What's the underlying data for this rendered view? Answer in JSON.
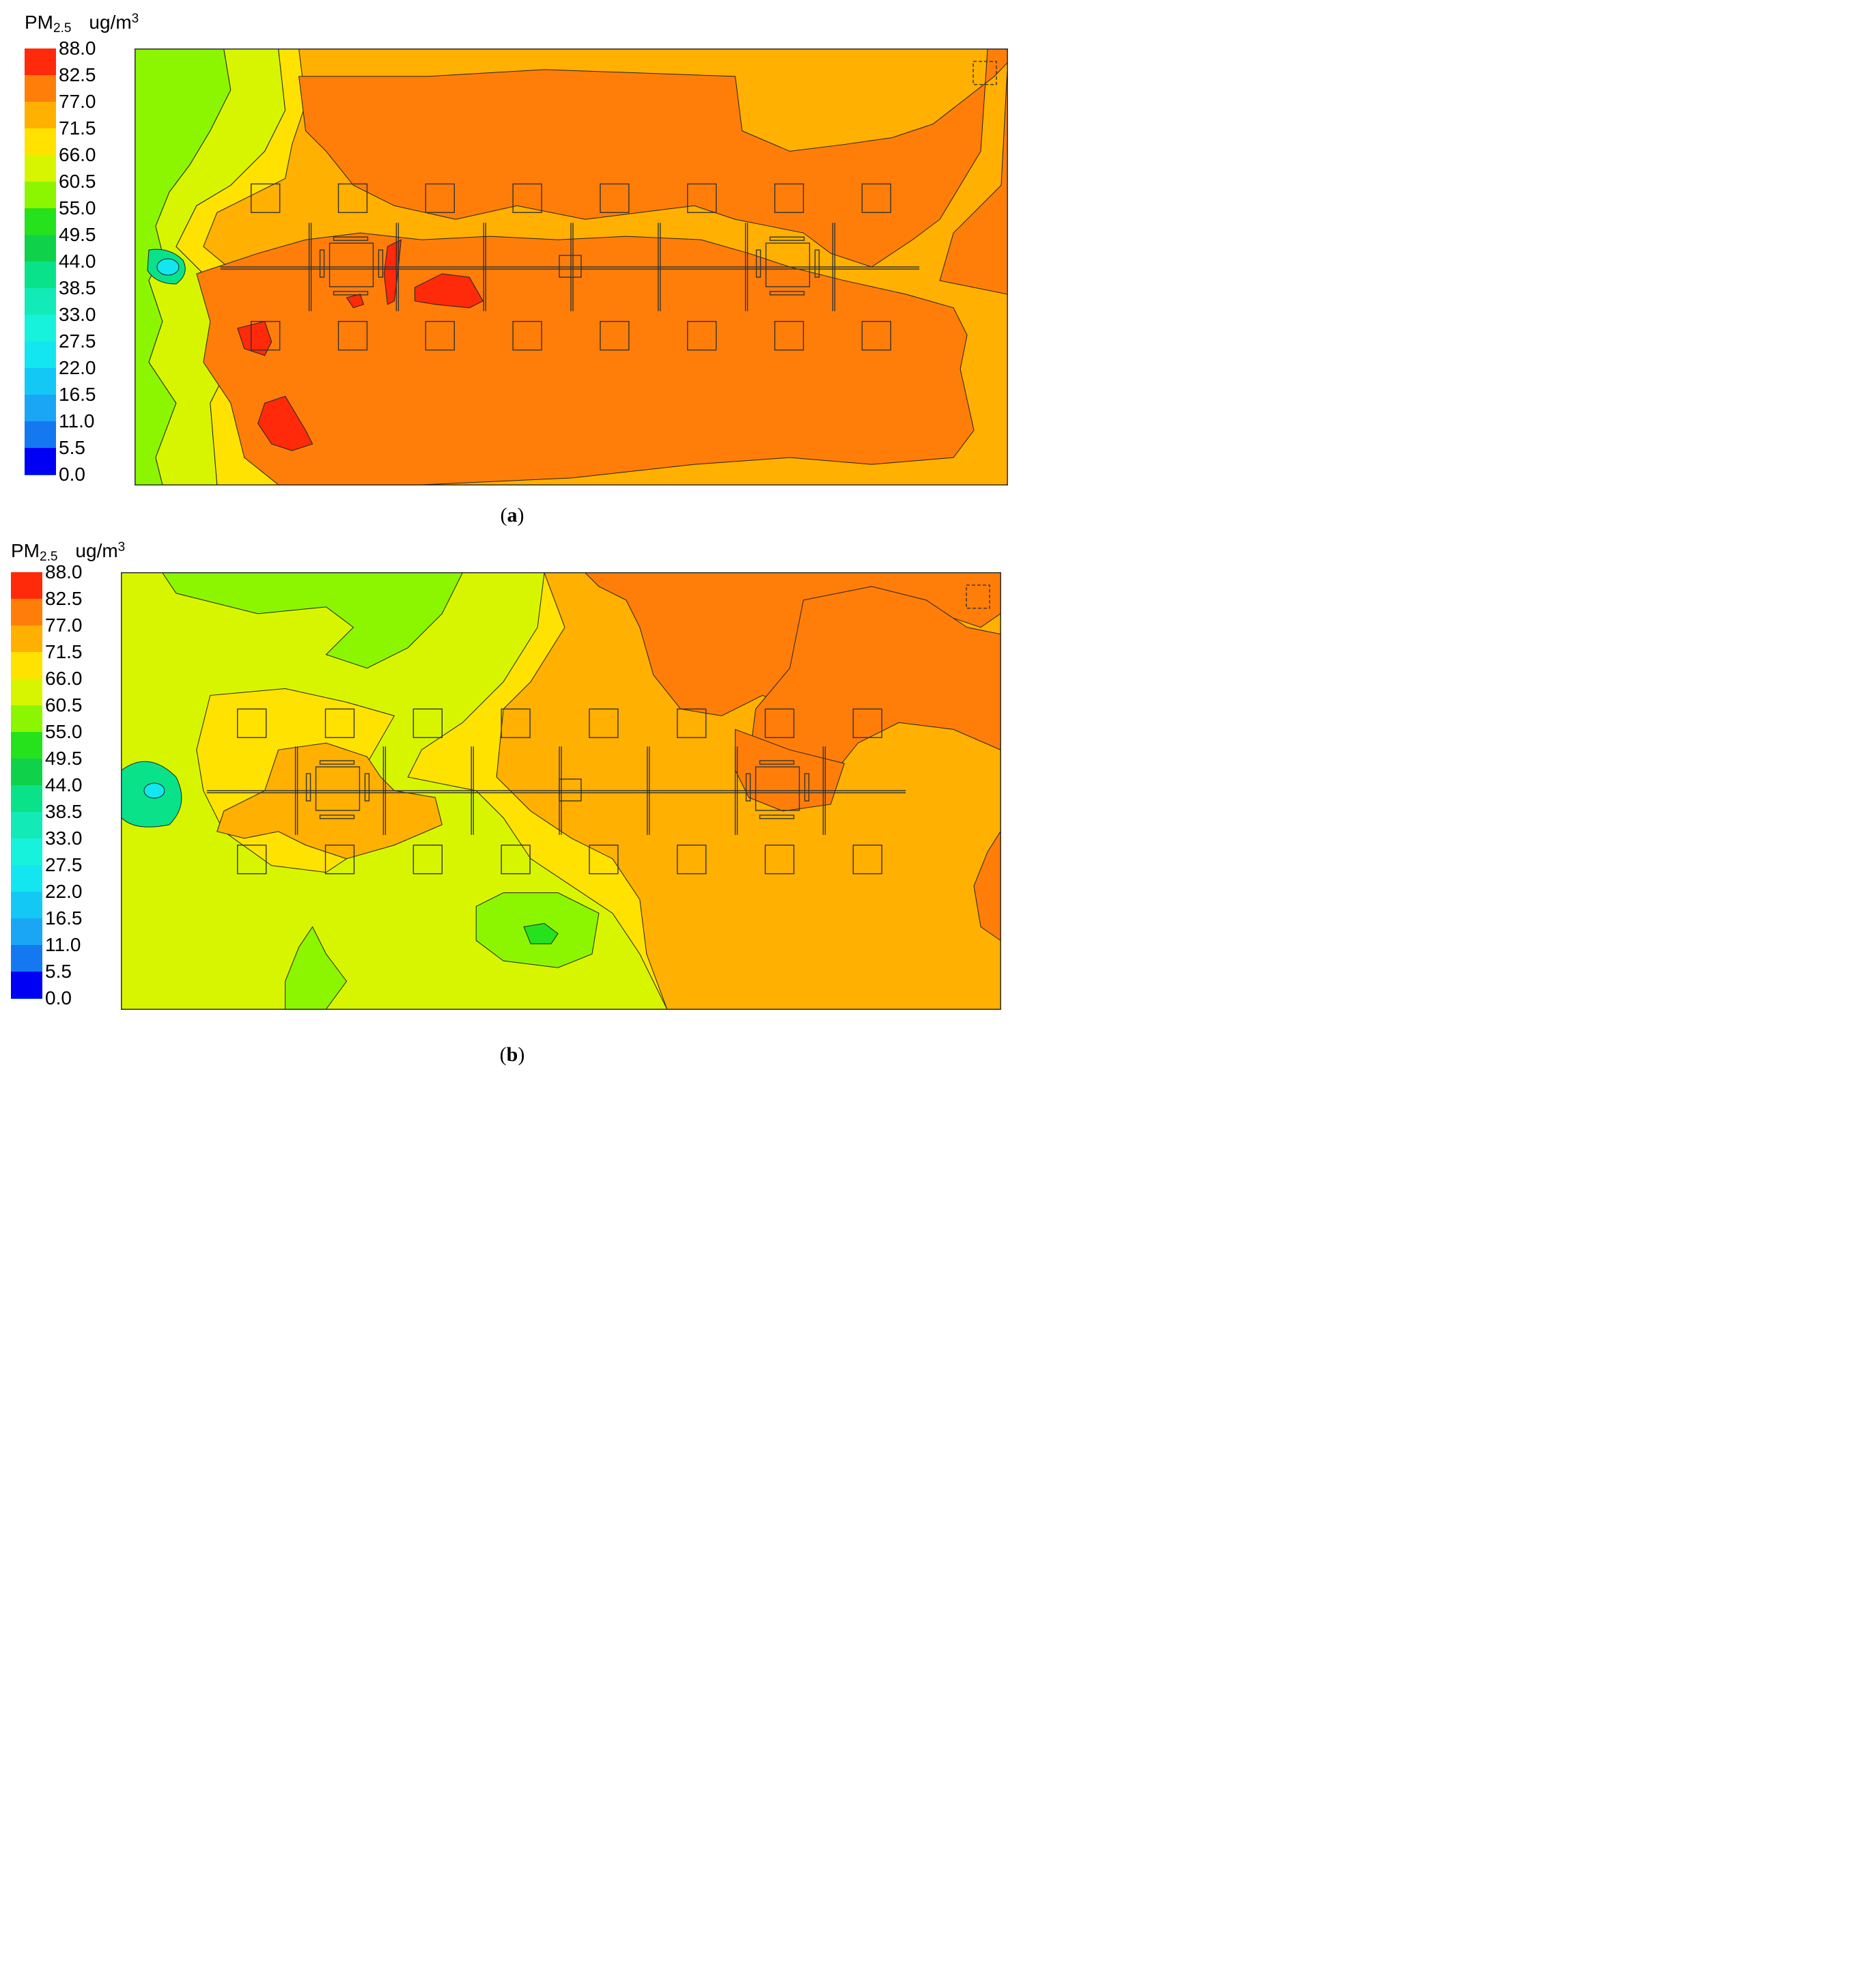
{
  "chart_data": [
    {
      "type": "heatmap",
      "panel_label": "a",
      "quantity": "PM",
      "quantity_subscript": "2.5",
      "unit": "ug/m",
      "unit_superscript": "3",
      "colorbar_ticks": [
        "88.0",
        "82.5",
        "77.0",
        "71.5",
        "66.0",
        "60.5",
        "55.0",
        "49.5",
        "44.0",
        "38.5",
        "33.0",
        "27.5",
        "22.0",
        "16.5",
        "11.0",
        "5.5",
        "0.0"
      ],
      "value_range": [
        0,
        88
      ],
      "dominant_level": 82.5,
      "regions": [
        {
          "level": 82.5,
          "description": "central and upper core"
        },
        {
          "level": 88.0,
          "description": "small hot spots near centre-left and lower-left"
        },
        {
          "level": 77.0,
          "description": "surrounding band"
        },
        {
          "level": 71.5,
          "description": "band toward left"
        },
        {
          "level": 60.5,
          "description": "left edge"
        },
        {
          "level": 27.5,
          "description": "source near left edge centre"
        }
      ]
    },
    {
      "type": "heatmap",
      "panel_label": "b",
      "quantity": "PM",
      "quantity_subscript": "2.5",
      "unit": "ug/m",
      "unit_superscript": "3",
      "colorbar_ticks": [
        "88.0",
        "82.5",
        "77.0",
        "71.5",
        "66.0",
        "60.5",
        "55.0",
        "49.5",
        "44.0",
        "38.5",
        "33.0",
        "27.5",
        "22.0",
        "16.5",
        "11.0",
        "5.5",
        "0.0"
      ],
      "value_range": [
        0,
        88
      ],
      "dominant_level": 71.5,
      "regions": [
        {
          "level": 77.0,
          "description": "right half"
        },
        {
          "level": 82.5,
          "description": "upper right tongues"
        },
        {
          "level": 71.5,
          "description": "central band"
        },
        {
          "level": 66.0,
          "description": "left and lower regions"
        },
        {
          "level": 60.5,
          "description": "upper-left and bottom patches"
        },
        {
          "level": 27.5,
          "description": "source near left edge centre"
        }
      ]
    }
  ],
  "colorbar_colors": [
    "#ff2a0a",
    "#ff7e0a",
    "#ffb000",
    "#ffe200",
    "#d8f500",
    "#8cf500",
    "#25e21c",
    "#0fd24a",
    "#0ae28a",
    "#12eab8",
    "#17f2dc",
    "#14e6f0",
    "#14c8f5",
    "#1aa6f5",
    "#1478f0",
    "#0a46f0",
    "#0000f5"
  ]
}
